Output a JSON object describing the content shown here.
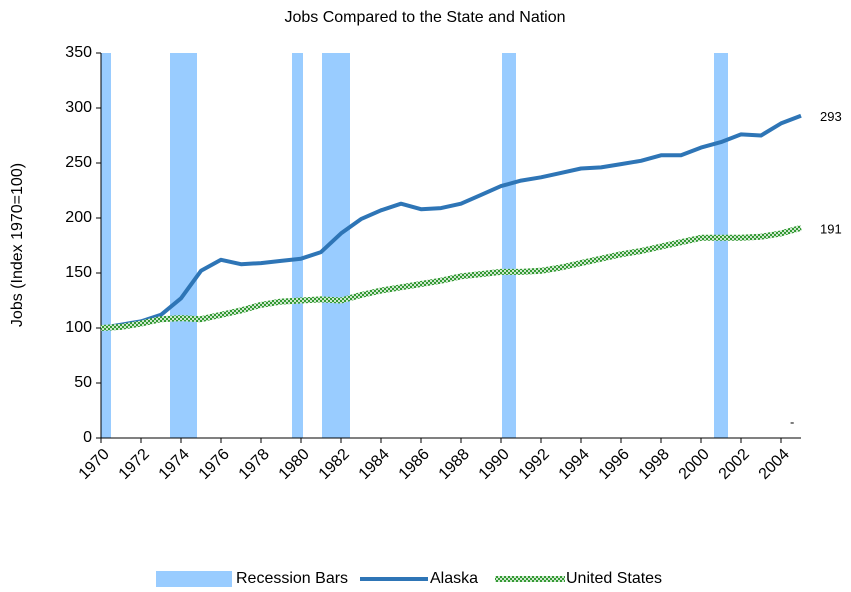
{
  "chart_data": {
    "type": "line",
    "title": "Jobs Compared to the State and Nation",
    "y_label": "Jobs (Index 1970=100)",
    "x": [
      1970,
      1971,
      1972,
      1973,
      1974,
      1975,
      1976,
      1977,
      1978,
      1979,
      1980,
      1981,
      1982,
      1983,
      1984,
      1985,
      1986,
      1987,
      1988,
      1989,
      1990,
      1991,
      1992,
      1993,
      1994,
      1995,
      1996,
      1997,
      1998,
      1999,
      2000,
      2001,
      2002,
      2003,
      2004,
      2005
    ],
    "xlim": [
      1970,
      2005
    ],
    "xticks": [
      1970,
      1972,
      1974,
      1976,
      1978,
      1980,
      1982,
      1984,
      1986,
      1988,
      1990,
      1992,
      1994,
      1996,
      1998,
      2000,
      2002,
      2004
    ],
    "ylim": [
      0,
      350
    ],
    "yticks": [
      0,
      50,
      100,
      150,
      200,
      250,
      300,
      350
    ],
    "recessions": {
      "name": "Recession Bars",
      "color": "#99ccff",
      "height": 350,
      "spans": [
        [
          1970,
          1970.5
        ],
        [
          1973.45,
          1974.8
        ],
        [
          1979.55,
          1980.1
        ],
        [
          1981.05,
          1982.45
        ],
        [
          1990.05,
          1990.75
        ],
        [
          2000.65,
          2001.35
        ]
      ]
    },
    "series": [
      {
        "name": "Alaska",
        "color": "#2e75b6",
        "values": [
          100,
          103,
          106,
          112,
          127,
          152,
          162,
          158,
          159,
          161,
          163,
          169,
          186,
          199,
          207,
          213,
          208,
          209,
          213,
          221,
          229,
          234,
          237,
          241,
          245,
          246,
          249,
          252,
          257,
          257,
          264,
          269,
          276,
          275,
          286,
          293
        ]
      },
      {
        "name": "United States",
        "color": "#339933",
        "values": [
          100,
          101,
          104,
          108,
          109,
          108,
          112,
          116,
          121,
          124,
          125,
          126,
          125,
          130,
          134,
          137,
          140,
          143,
          147,
          149,
          151,
          151,
          152,
          155,
          159,
          163,
          167,
          170,
          174,
          178,
          182,
          182,
          182,
          183,
          186,
          191
        ]
      }
    ],
    "annotation": "-"
  }
}
